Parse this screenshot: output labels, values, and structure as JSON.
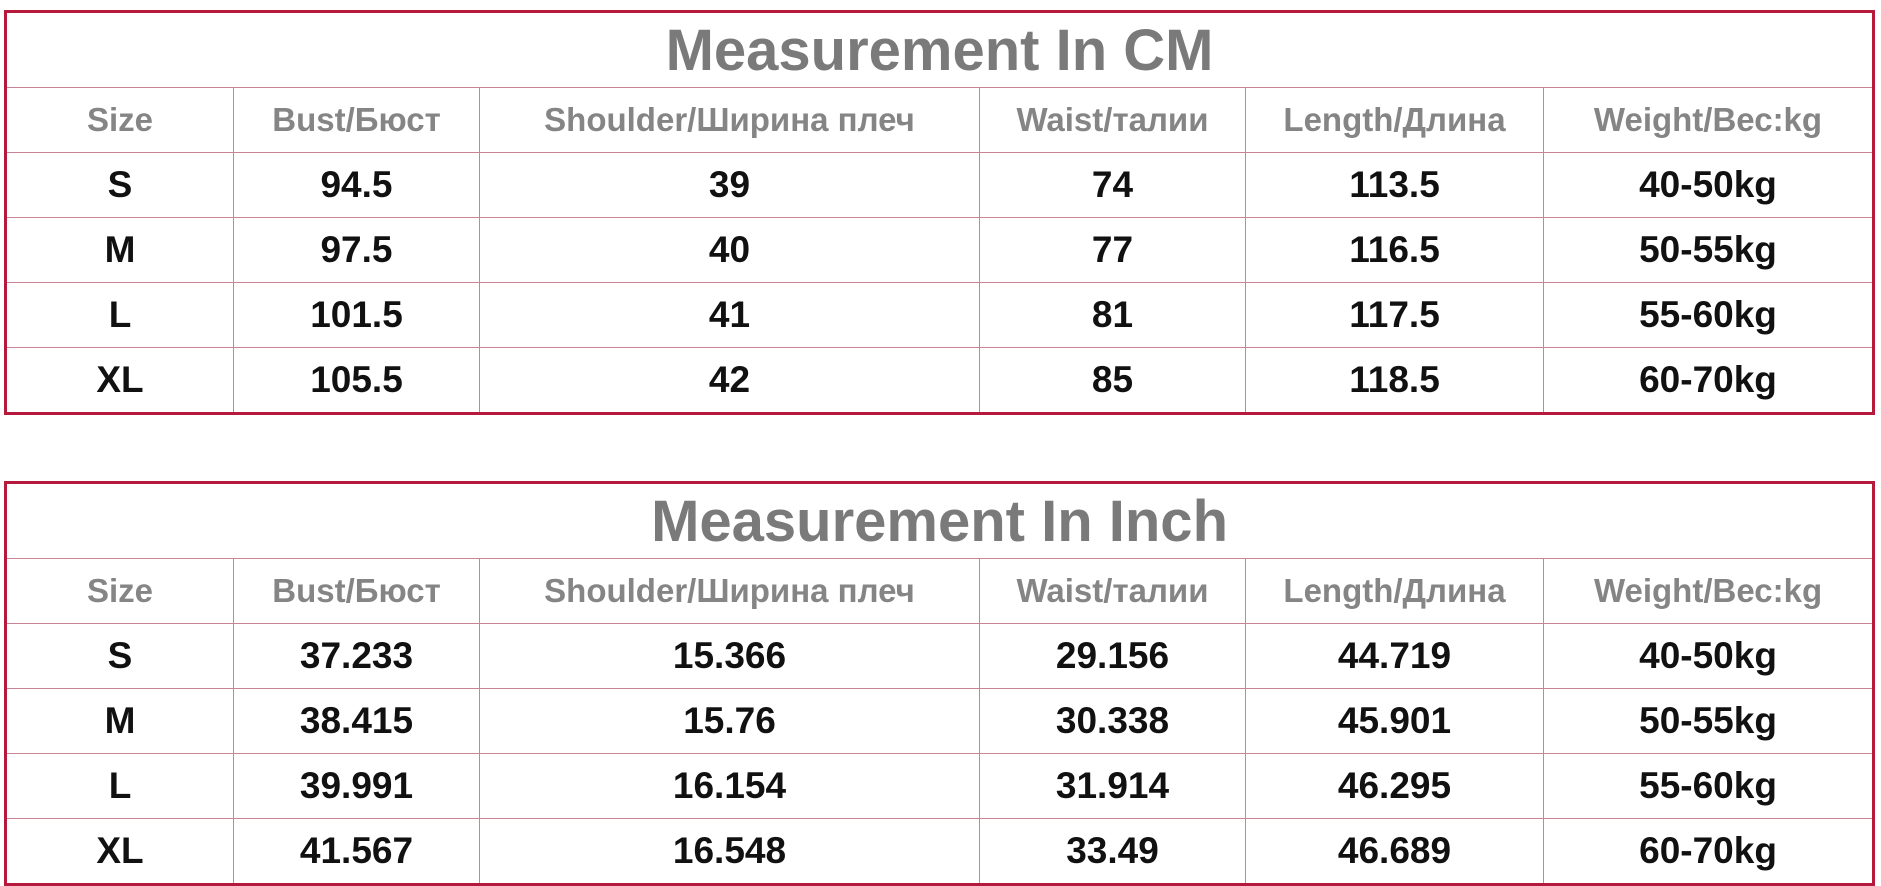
{
  "tables": [
    {
      "title": "Measurement In CM",
      "headers": [
        "Size",
        "Bust/Бюст",
        "Shoulder/Ширина плеч",
        "Waist/талии",
        "Length/Длина",
        "Weight/Вес:kg"
      ],
      "rows": [
        [
          "S",
          "94.5",
          "39",
          "74",
          "113.5",
          "40-50kg"
        ],
        [
          "M",
          "97.5",
          "40",
          "77",
          "116.5",
          "50-55kg"
        ],
        [
          "L",
          "101.5",
          "41",
          "81",
          "117.5",
          "55-60kg"
        ],
        [
          "XL",
          "105.5",
          "42",
          "85",
          "118.5",
          "60-70kg"
        ]
      ]
    },
    {
      "title": "Measurement In Inch",
      "headers": [
        "Size",
        "Bust/Бюст",
        "Shoulder/Ширина плеч",
        "Waist/талии",
        "Length/Длина",
        "Weight/Вес:kg"
      ],
      "rows": [
        [
          "S",
          "37.233",
          "15.366",
          "29.156",
          "44.719",
          "40-50kg"
        ],
        [
          "M",
          "38.415",
          "15.76",
          "30.338",
          "45.901",
          "50-55kg"
        ],
        [
          "L",
          "39.991",
          "16.154",
          "31.914",
          "46.295",
          "55-60kg"
        ],
        [
          "XL",
          "41.567",
          "16.548",
          "33.49",
          "46.689",
          "60-70kg"
        ]
      ]
    }
  ]
}
